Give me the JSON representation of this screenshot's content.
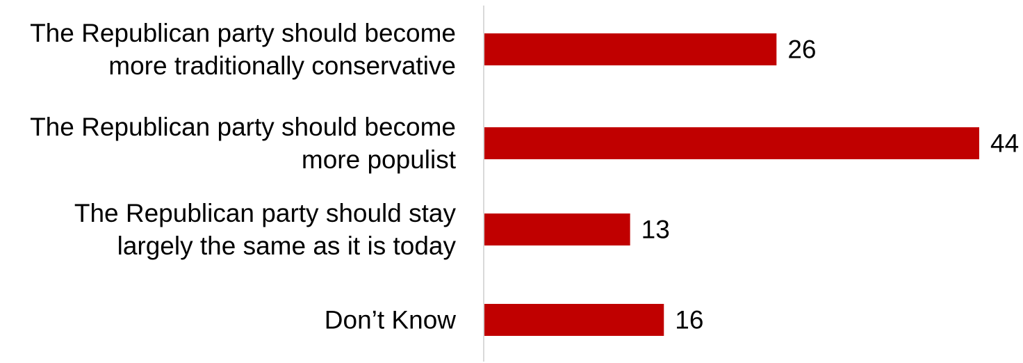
{
  "chart_data": {
    "type": "bar",
    "orientation": "horizontal",
    "title": "",
    "xlabel": "",
    "ylabel": "",
    "categories": [
      [
        "The Republican party should become",
        "more traditionally conservative"
      ],
      [
        "The Republican party should become",
        "more populist"
      ],
      [
        "The Republican party should stay",
        "largely the same as it is today"
      ],
      [
        "Don’t Know"
      ]
    ],
    "values": [
      26,
      44,
      13,
      16
    ],
    "xlim": [
      0,
      44
    ],
    "grid": false,
    "legend": "none",
    "bar_color": "#C00000",
    "axis_color": "#D9D9D9"
  }
}
